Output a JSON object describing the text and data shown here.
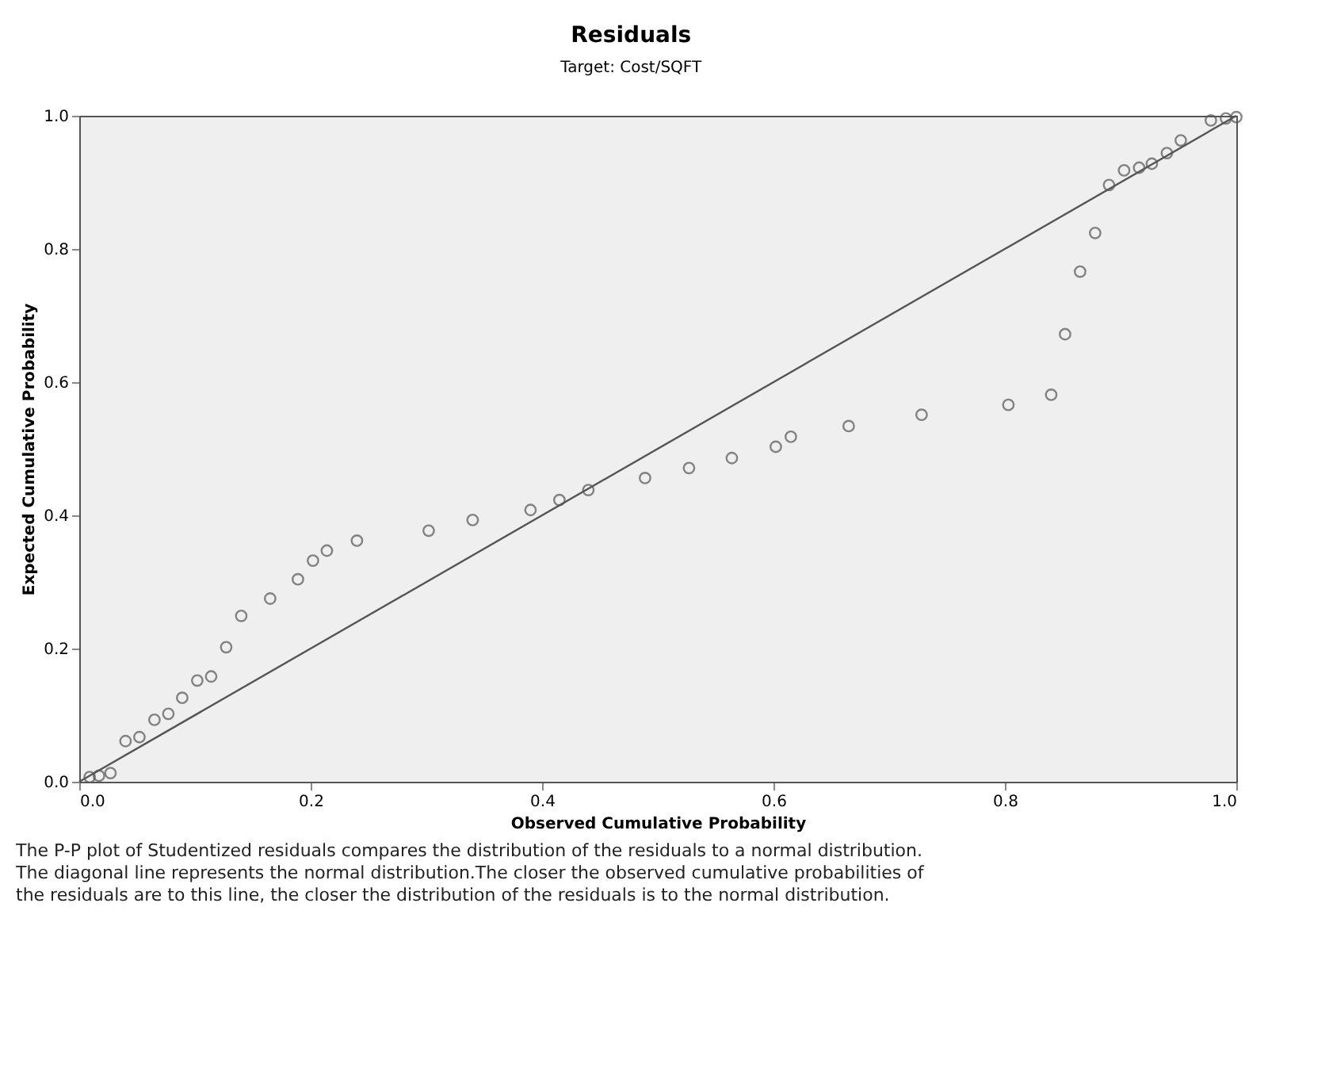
{
  "chart_data": {
    "type": "scatter",
    "title": "Residuals",
    "subtitle": "Target: Cost/SQFT",
    "xlabel": "Observed Cumulative Probability",
    "ylabel": "Expected Cumulative Probability",
    "xlim": [
      0,
      1
    ],
    "ylim": [
      0,
      1
    ],
    "xticks": [
      {
        "value": 0,
        "label": "0.0"
      },
      {
        "value": 0.2,
        "label": "0.2"
      },
      {
        "value": 0.4,
        "label": "0.4"
      },
      {
        "value": 0.6,
        "label": "0.6"
      },
      {
        "value": 0.8,
        "label": "0.8"
      },
      {
        "value": 1,
        "label": "1.0"
      }
    ],
    "yticks": [
      {
        "value": 0,
        "label": "0.0"
      },
      {
        "value": 0.2,
        "label": "0.2"
      },
      {
        "value": 0.4,
        "label": "0.4"
      },
      {
        "value": 0.6,
        "label": "0.6"
      },
      {
        "value": 0.8,
        "label": "0.8"
      },
      {
        "value": 1,
        "label": "1.0"
      }
    ],
    "grid": false,
    "marker": "circle",
    "series": [
      {
        "color": "#555555",
        "x": [
          0.009,
          0.017,
          0.027,
          0.04,
          0.052,
          0.065,
          0.077,
          0.089,
          0.102,
          0.114,
          0.127,
          0.14,
          0.165,
          0.189,
          0.202,
          0.214,
          0.24,
          0.302,
          0.34,
          0.39,
          0.415,
          0.44,
          0.489,
          0.527,
          0.564,
          0.602,
          0.615,
          0.665,
          0.728,
          0.803,
          0.84,
          0.852,
          0.865,
          0.878,
          0.89,
          0.903,
          0.916,
          0.927,
          0.94,
          0.952,
          0.978,
          0.991,
          1.0
        ],
        "values": [
          0.007,
          0.009,
          0.013,
          0.061,
          0.067,
          0.093,
          0.102,
          0.126,
          0.152,
          0.158,
          0.202,
          0.249,
          0.275,
          0.304,
          0.332,
          0.347,
          0.362,
          0.377,
          0.393,
          0.408,
          0.423,
          0.438,
          0.456,
          0.471,
          0.486,
          0.503,
          0.518,
          0.534,
          0.551,
          0.566,
          0.581,
          0.672,
          0.766,
          0.824,
          0.896,
          0.918,
          0.922,
          0.928,
          0.944,
          0.963,
          0.993,
          0.996,
          0.998
        ]
      },
      {
        "type": "line",
        "color": "#555555",
        "line_style": "solid",
        "marker": "none",
        "x": [
          0,
          1
        ],
        "values": [
          0,
          1
        ]
      }
    ],
    "annotations": [
      "The P-P plot of Studentized residuals compares the distribution of the residuals to a normal distribution. The diagonal line represents the normal distribution.The closer the observed cumulative probabilities of the residuals are to this line, the closer the distribution of the residuals is to the normal distribution."
    ]
  }
}
